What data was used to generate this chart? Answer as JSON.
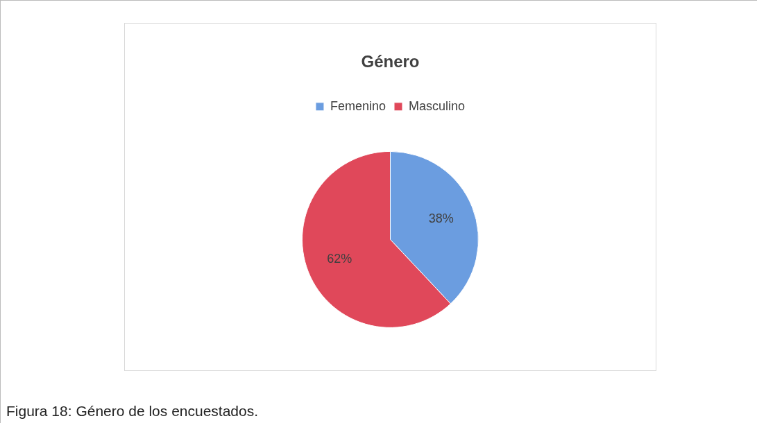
{
  "chart_data": {
    "type": "pie",
    "title": "Género",
    "categories": [
      "Femenino",
      "Masculino"
    ],
    "values": [
      38,
      62
    ],
    "colors": [
      "#6b9de0",
      "#e0485a"
    ],
    "value_labels": [
      "38%",
      "62%"
    ],
    "legend": "top",
    "annotations": [
      "Figura 18: Género de los encuestados."
    ]
  }
}
